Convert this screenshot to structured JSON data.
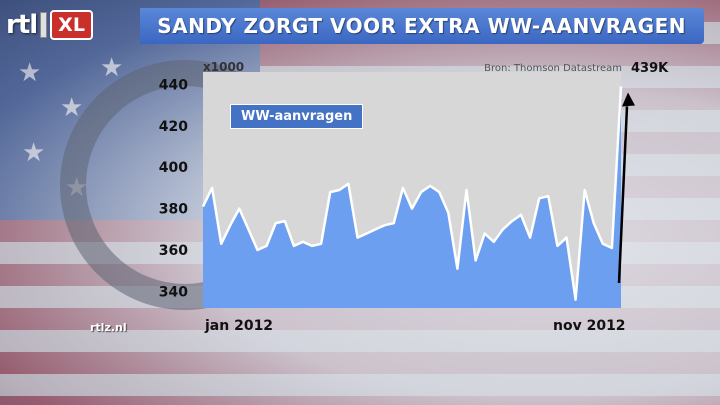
{
  "branding": {
    "logo_main": "rtl",
    "logo_badge": "XL",
    "site": "rtlz.nl"
  },
  "header": {
    "title": "SANDY ZORGT VOOR EXTRA WW-AANVRAGEN"
  },
  "colors": {
    "title_bg": "#4472c4",
    "area_fill": "#6d9ff0",
    "line": "#ffffff",
    "plot_bg": "#d7d7d7",
    "arrow": "#000000"
  },
  "chart_data": {
    "type": "area",
    "title": "SANDY ZORGT VOOR EXTRA WW-AANVRAGEN",
    "unit_label": "x1000",
    "source": "Bron: Thomson Datastream",
    "series": [
      {
        "name": "WW-aanvragen",
        "values": [
          381,
          390,
          363,
          372,
          380,
          370,
          360,
          362,
          373,
          374,
          362,
          364,
          362,
          363,
          388,
          389,
          392,
          366,
          368,
          370,
          372,
          373,
          390,
          380,
          388,
          391,
          388,
          378,
          351,
          389,
          355,
          368,
          364,
          370,
          374,
          377,
          366,
          385,
          386,
          362,
          366,
          336,
          389,
          373,
          363,
          361,
          439
        ]
      }
    ],
    "x_tick_labels": [
      "jan 2012",
      "nov 2012"
    ],
    "y_ticks": [
      340,
      360,
      380,
      400,
      420,
      440
    ],
    "ylim": [
      332,
      446
    ],
    "callout": {
      "label": "439K",
      "value": 439
    },
    "grid": false,
    "legend": "top-left"
  }
}
